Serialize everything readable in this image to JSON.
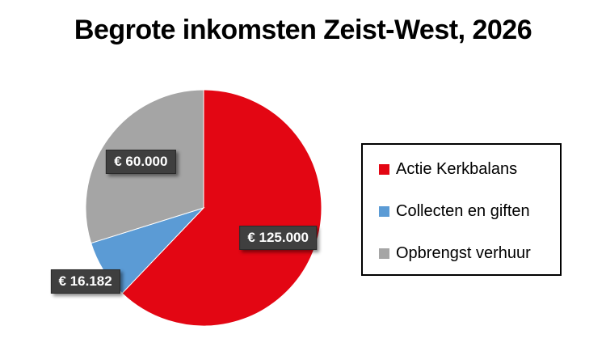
{
  "chart_data": {
    "type": "pie",
    "title": "Begrote inkomsten Zeist-West, 2026",
    "slices": [
      {
        "name": "Actie Kerkbalans",
        "value": 125000,
        "label": "€ 125.000",
        "color": "#E30613"
      },
      {
        "name": "Collecten en giften",
        "value": 16182,
        "label": "€ 16.182",
        "color": "#5B9BD5"
      },
      {
        "name": "Opbrengst verhuur",
        "value": 60000,
        "label": "€ 60.000",
        "color": "#A5A5A5"
      }
    ],
    "legend_position": "right"
  }
}
